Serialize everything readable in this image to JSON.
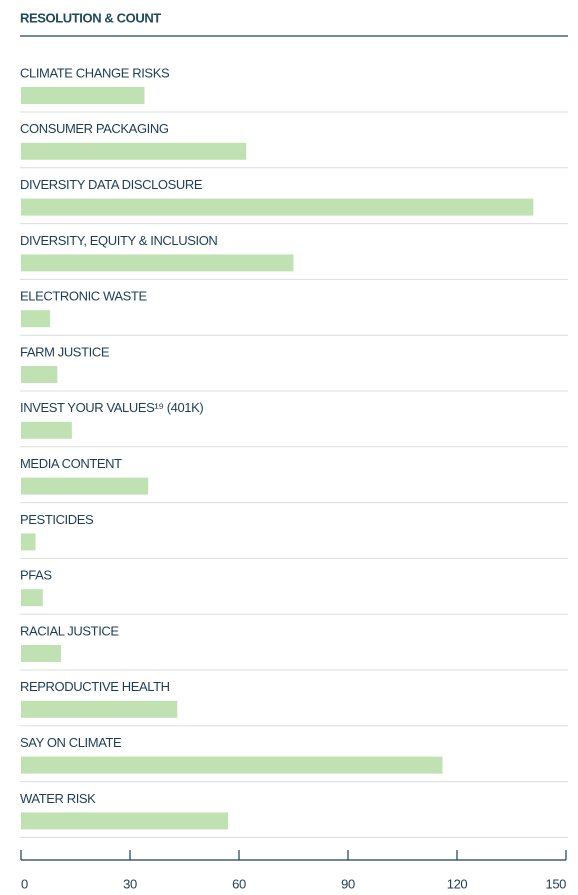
{
  "chart_data": {
    "type": "bar",
    "orientation": "horizontal",
    "title": "RESOLUTION & COUNT",
    "categories": [
      "CLIMATE CHANGE RISKS",
      "CONSUMER PACKAGING",
      "DIVERSITY DATA DISCLOSURE",
      "DIVERSITY, EQUITY & INCLUSION",
      "ELECTRONIC WASTE",
      "FARM JUSTICE",
      "INVEST YOUR VALUES¹⁹ (401K)",
      "MEDIA CONTENT",
      "PESTICIDES",
      "PFAS",
      "RACIAL JUSTICE",
      "REPRODUCTIVE HEALTH",
      "SAY ON CLIMATE",
      "WATER RISK"
    ],
    "values": [
      34,
      62,
      141,
      75,
      8,
      10,
      14,
      35,
      4,
      6,
      11,
      43,
      116,
      57
    ],
    "color": "#c0e2b3",
    "xlim": [
      0,
      150
    ],
    "xticks": [
      0,
      30,
      60,
      90,
      120,
      150
    ]
  }
}
